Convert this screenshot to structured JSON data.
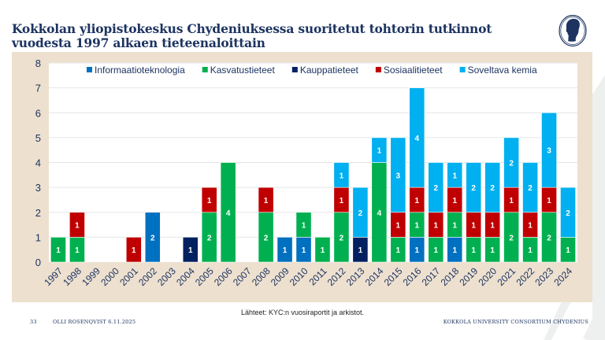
{
  "header": {
    "title": "Kokkolan yliopistokeskus Chydeniuksessa suoritetut tohtorin tutkinnot vuodesta 1997 alkaen tieteenaloittain",
    "logo_icon": "chydenius-silhouette-logo"
  },
  "colors": {
    "panel_bg": "#ede0cf",
    "title": "#1d3461",
    "axis_text": "#1d3461"
  },
  "chart_data": {
    "type": "bar",
    "stacked": true,
    "title": "",
    "xlabel": "",
    "ylabel": "",
    "ylim": [
      0,
      8
    ],
    "yticks": [
      0,
      1,
      2,
      3,
      4,
      5,
      6,
      7,
      8
    ],
    "grid": true,
    "legend_position": "top",
    "data_labels": true,
    "categories": [
      "1997",
      "1998",
      "1999",
      "2000",
      "2001",
      "2002",
      "2003",
      "2004",
      "2005",
      "2006",
      "2007",
      "2008",
      "2009",
      "2010",
      "2011",
      "2012",
      "2013",
      "2014",
      "2015",
      "2016",
      "2017",
      "2018",
      "2019",
      "2020",
      "2021",
      "2022",
      "2023",
      "2024"
    ],
    "series": [
      {
        "name": "Informaatioteknologia",
        "color": "#0070c0",
        "values": [
          0,
          0,
          0,
          0,
          0,
          2,
          0,
          0,
          0,
          0,
          0,
          0,
          1,
          1,
          0,
          0,
          0,
          0,
          0,
          1,
          0,
          1,
          0,
          0,
          0,
          0,
          0,
          0
        ]
      },
      {
        "name": "Kasvatustieteet",
        "color": "#00b050",
        "values": [
          1,
          1,
          0,
          0,
          0,
          0,
          0,
          0,
          2,
          4,
          0,
          2,
          0,
          1,
          1,
          2,
          0,
          4,
          1,
          1,
          1,
          1,
          1,
          1,
          2,
          1,
          2,
          1
        ]
      },
      {
        "name": "Kauppatieteet",
        "color": "#002060",
        "values": [
          0,
          0,
          0,
          0,
          0,
          0,
          0,
          1,
          0,
          0,
          0,
          0,
          0,
          0,
          0,
          0,
          1,
          0,
          0,
          0,
          0,
          0,
          0,
          0,
          0,
          0,
          0,
          0
        ]
      },
      {
        "name": "Sosiaalitieteet",
        "color": "#c00000",
        "values": [
          0,
          1,
          0,
          0,
          1,
          0,
          0,
          0,
          1,
          0,
          0,
          1,
          0,
          0,
          0,
          1,
          0,
          0,
          1,
          1,
          1,
          1,
          1,
          1,
          1,
          1,
          1,
          0
        ]
      },
      {
        "name": "Soveltava kemia",
        "color": "#00b0f0",
        "values": [
          0,
          0,
          0,
          0,
          0,
          0,
          0,
          0,
          0,
          0,
          0,
          0,
          0,
          0,
          0,
          1,
          2,
          1,
          3,
          4,
          2,
          1,
          2,
          2,
          2,
          2,
          3,
          2
        ]
      }
    ]
  },
  "source_note": "Lähteet: KYC:n vuosiraportit ja arkistot.",
  "footer": {
    "page_number": "33",
    "author_date": "OLLI ROSENQVIST 6.11.2025",
    "organization": "KOKKOLA UNIVERSITY CONSORTIUM CHYDENIUS"
  }
}
